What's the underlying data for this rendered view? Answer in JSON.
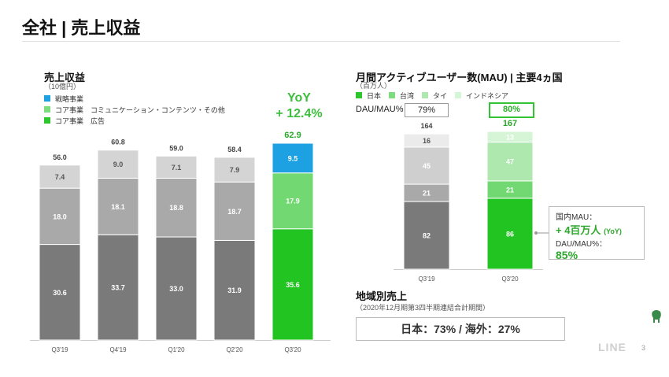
{
  "page_title": "全社 | 売上収益",
  "revenue_section": {
    "title": "売上収益",
    "unit": "（10億円）",
    "legend": [
      {
        "label": "戦略事業",
        "color": "#1da1e3"
      },
      {
        "label": "コア事業　コミュニケーション・コンテンツ・その他",
        "color": "#7ddc7d"
      },
      {
        "label": "コア事業　広告",
        "color": "#2dc72d"
      }
    ],
    "yoy_label": "YoY",
    "yoy_value": "+ 12.4%"
  },
  "mau_section": {
    "title": "月間アクティブユーザー数(MAU) | 主要4ヵ国",
    "unit": "（百万人）",
    "legend": [
      {
        "label": "日本",
        "color": "#2dc72d"
      },
      {
        "label": "台湾",
        "color": "#7ddc7d"
      },
      {
        "label": "タイ",
        "color": "#aee8ae"
      },
      {
        "label": "インドネシア",
        "color": "#d6f5d6"
      }
    ],
    "dau_label": "DAU/MAU%",
    "dau_values": [
      "79%",
      "80%"
    ],
    "callout": {
      "line1": "国内MAU：",
      "line2": "+ 4百万人",
      "line2_suffix": "(YoY)",
      "line3": "DAU/MAU%：",
      "line4": "85%"
    }
  },
  "region_section": {
    "title": "地域別売上",
    "subtitle": "（2020年12月期第3四半期連結合計期間）",
    "summary": "日本：73% / 海外：27%"
  },
  "footer": {
    "brand": "LINE",
    "page_number": "3"
  },
  "chart_data": [
    {
      "type": "bar",
      "stacked": true,
      "categories": [
        "Q3'19",
        "Q4'19",
        "Q1'20",
        "Q2'20",
        "Q3'20"
      ],
      "series": [
        {
          "name": "コア事業　広告",
          "values": [
            30.6,
            33.7,
            33.0,
            31.9,
            35.6
          ],
          "colors": [
            "#7a7a7a",
            "#7a7a7a",
            "#7a7a7a",
            "#7a7a7a",
            "#22c422"
          ]
        },
        {
          "name": "コア事業　コミュニケーション・コンテンツ・その他",
          "values": [
            18.0,
            18.1,
            18.8,
            18.7,
            17.9
          ],
          "colors": [
            "#a9a9a9",
            "#a9a9a9",
            "#a9a9a9",
            "#a9a9a9",
            "#72d972"
          ]
        },
        {
          "name": "戦略事業",
          "values": [
            7.4,
            9.0,
            7.1,
            7.9,
            9.5
          ],
          "colors": [
            "#d4d4d4",
            "#d4d4d4",
            "#d4d4d4",
            "#d4d4d4",
            "#1da1e3"
          ]
        }
      ],
      "totals": [
        "56.0",
        "60.8",
        "59.0",
        "58.4",
        "62.9"
      ],
      "labels": [
        [
          "30.6",
          "33.7",
          "33.0",
          "31.9",
          "35.6"
        ],
        [
          "18.0",
          "18.1",
          "18.8",
          "18.7",
          "17.9"
        ],
        [
          "7.4",
          "9.0",
          "7.1",
          "7.9",
          "9.5"
        ]
      ],
      "ylim": [
        0,
        63
      ]
    },
    {
      "type": "bar",
      "stacked": true,
      "categories": [
        "Q3'19",
        "Q3'20"
      ],
      "series": [
        {
          "name": "日本",
          "values": [
            82,
            86
          ],
          "colors": [
            "#7a7a7a",
            "#22c422"
          ]
        },
        {
          "name": "台湾",
          "values": [
            21,
            21
          ],
          "colors": [
            "#a9a9a9",
            "#72d972"
          ]
        },
        {
          "name": "タイ",
          "values": [
            45,
            47
          ],
          "colors": [
            "#cfcfcf",
            "#aee8ae"
          ]
        },
        {
          "name": "インドネシア",
          "values": [
            16,
            13
          ],
          "colors": [
            "#ebebeb",
            "#d6f5d6"
          ]
        }
      ],
      "totals": [
        "164",
        "167"
      ],
      "labels": [
        [
          "82",
          "86"
        ],
        [
          "21",
          "21"
        ],
        [
          "45",
          "47"
        ],
        [
          "16",
          "13"
        ]
      ],
      "ylim": [
        0,
        167
      ]
    }
  ]
}
